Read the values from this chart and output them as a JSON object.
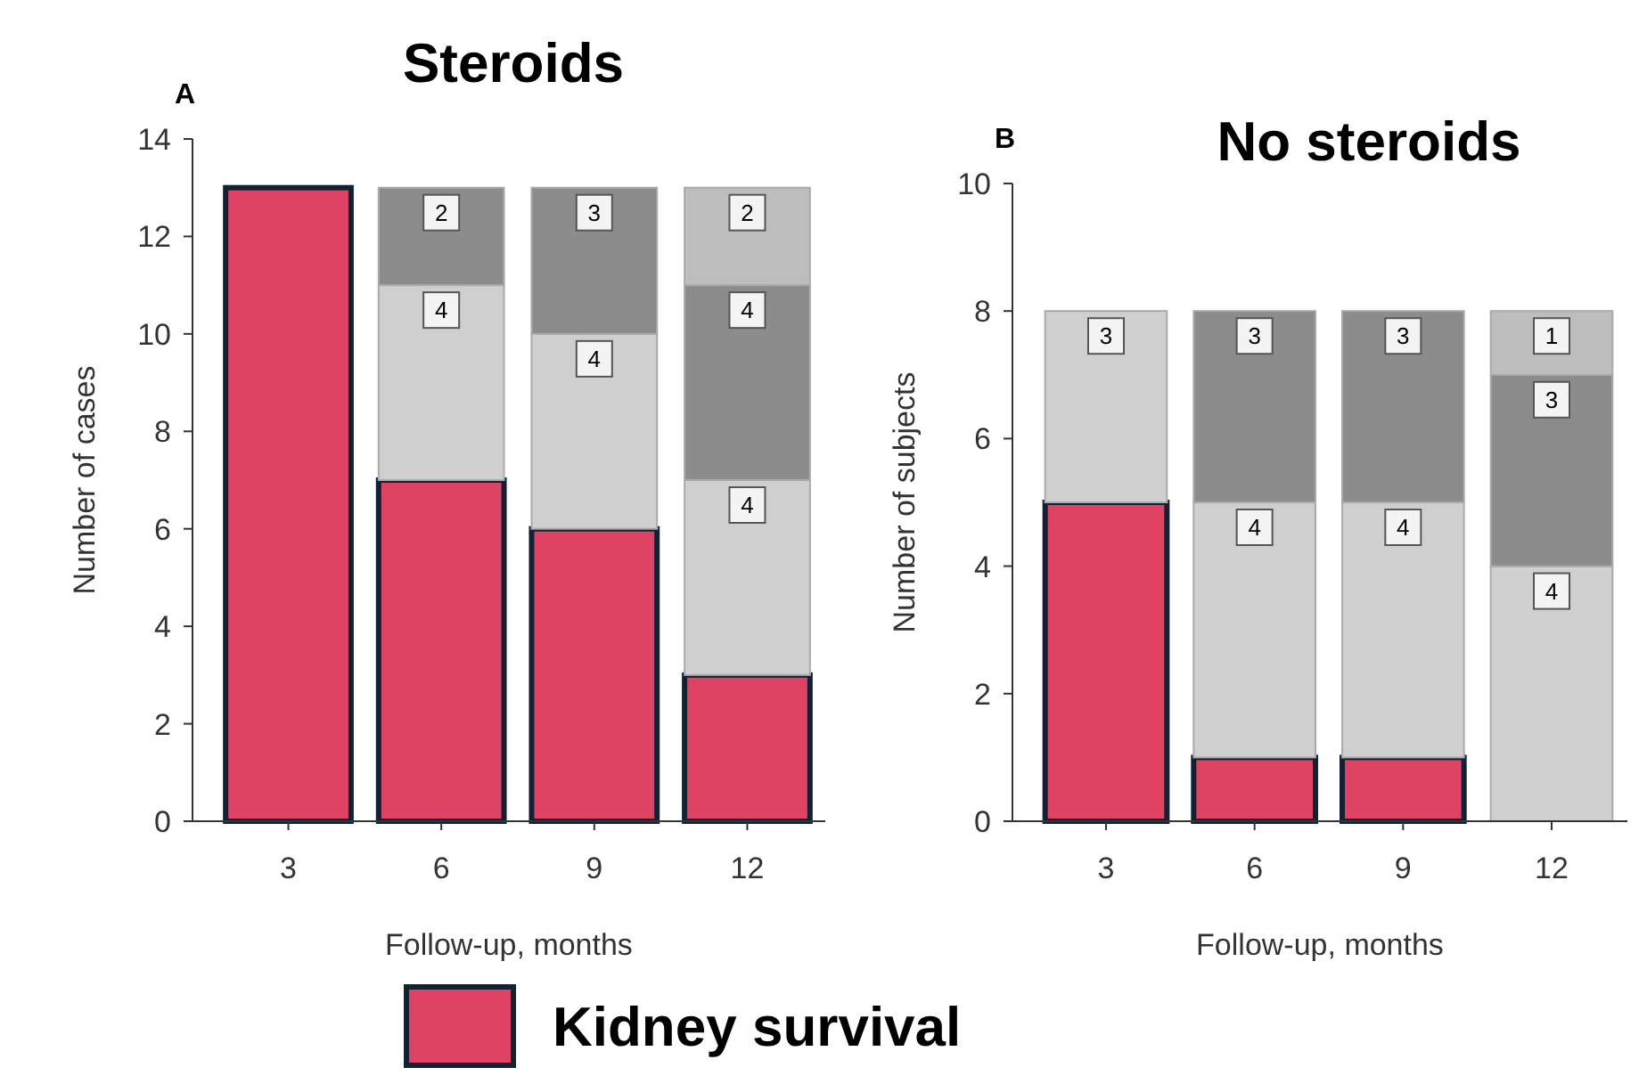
{
  "chart_data": [
    {
      "type": "bar",
      "title": "Steroids",
      "annotations": [
        "A"
      ],
      "xlabel": "Follow-up, months",
      "ylabel": "Number of cases",
      "categories": [
        "3",
        "6",
        "9",
        "12"
      ],
      "stacked": true,
      "ylim": [
        0,
        14
      ],
      "yticks": [
        0,
        2,
        4,
        6,
        8,
        10,
        12,
        14
      ],
      "legend": "bottom",
      "series": [
        {
          "name": "Kidney survival",
          "color": "#e04264",
          "values": [
            13,
            7,
            6,
            3
          ]
        },
        {
          "color": "#cfcfcf",
          "values": [
            0,
            4,
            4,
            4
          ],
          "value_labels": [
            null,
            "4",
            "4",
            "4"
          ]
        },
        {
          "color": "#8c8c8c",
          "values": [
            0,
            2,
            3,
            4
          ],
          "value_labels": [
            null,
            "2",
            "3",
            "4"
          ]
        },
        {
          "color": "#bdbdbd",
          "values": [
            0,
            0,
            0,
            2
          ],
          "value_labels": [
            null,
            null,
            null,
            "2"
          ]
        }
      ]
    },
    {
      "type": "bar",
      "title": "No steroids",
      "annotations": [
        "B"
      ],
      "xlabel": "Follow-up, months",
      "ylabel": "Number of subjects",
      "categories": [
        "3",
        "6",
        "9",
        "12"
      ],
      "stacked": true,
      "ylim": [
        0,
        10
      ],
      "yticks": [
        0,
        2,
        4,
        6,
        8,
        10
      ],
      "series": [
        {
          "color": "#e04264",
          "values": [
            5,
            1,
            1,
            0
          ]
        },
        {
          "color": "#cfcfcf",
          "values": [
            3,
            4,
            4,
            4
          ],
          "value_labels": [
            "3",
            "4",
            "4",
            "4"
          ]
        },
        {
          "color": "#8c8c8c",
          "values": [
            0,
            3,
            3,
            3
          ],
          "value_labels": [
            null,
            "3",
            "3",
            "3"
          ]
        },
        {
          "color": "#bdbdbd",
          "values": [
            0,
            0,
            0,
            1
          ],
          "value_labels": [
            null,
            null,
            null,
            "1"
          ]
        }
      ]
    }
  ]
}
